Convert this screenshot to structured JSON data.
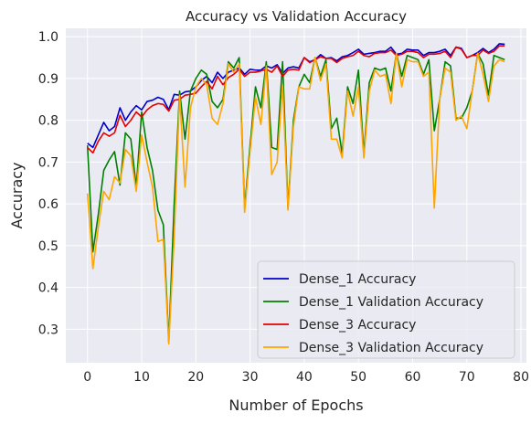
{
  "chart_data": {
    "type": "line",
    "title": "Accuracy vs Validation Accuracy",
    "xlabel": "Number of Epochs",
    "ylabel": "Accuracy",
    "xlim": [
      -4,
      81
    ],
    "ylim": [
      0.22,
      1.02
    ],
    "xticks": [
      0,
      10,
      20,
      30,
      40,
      50,
      60,
      70,
      80
    ],
    "yticks": [
      0.3,
      0.4,
      0.5,
      0.6,
      0.7,
      0.8,
      0.9,
      1.0
    ],
    "xtick_labels": [
      "0",
      "10",
      "20",
      "30",
      "40",
      "50",
      "60",
      "70",
      "80"
    ],
    "ytick_labels": [
      "0.3",
      "0.4",
      "0.5",
      "0.6",
      "0.7",
      "0.8",
      "0.9",
      "1.0"
    ],
    "grid": true,
    "legend_position": "lower-right",
    "x": [
      0,
      1,
      2,
      3,
      4,
      5,
      6,
      7,
      8,
      9,
      10,
      11,
      12,
      13,
      14,
      15,
      16,
      17,
      18,
      19,
      20,
      21,
      22,
      23,
      24,
      25,
      26,
      27,
      28,
      29,
      30,
      31,
      32,
      33,
      34,
      35,
      36,
      37,
      38,
      39,
      40,
      41,
      42,
      43,
      44,
      45,
      46,
      47,
      48,
      49,
      50,
      51,
      52,
      53,
      54,
      55,
      56,
      57,
      58,
      59,
      60,
      61,
      62,
      63,
      64,
      65,
      66,
      67,
      68,
      69,
      70,
      71,
      72,
      73,
      74,
      75,
      76,
      77
    ],
    "series": [
      {
        "name": "Dense_1 Accuracy",
        "color": "#0000cc",
        "values": [
          0.745,
          0.735,
          0.765,
          0.795,
          0.775,
          0.785,
          0.83,
          0.8,
          0.82,
          0.835,
          0.825,
          0.845,
          0.848,
          0.855,
          0.85,
          0.825,
          0.862,
          0.86,
          0.868,
          0.87,
          0.88,
          0.895,
          0.905,
          0.89,
          0.915,
          0.9,
          0.915,
          0.92,
          0.925,
          0.91,
          0.922,
          0.92,
          0.92,
          0.93,
          0.925,
          0.933,
          0.912,
          0.925,
          0.928,
          0.925,
          0.95,
          0.94,
          0.945,
          0.957,
          0.948,
          0.95,
          0.942,
          0.952,
          0.955,
          0.962,
          0.97,
          0.958,
          0.96,
          0.962,
          0.965,
          0.965,
          0.975,
          0.958,
          0.96,
          0.97,
          0.968,
          0.968,
          0.955,
          0.962,
          0.962,
          0.965,
          0.97,
          0.955,
          0.975,
          0.972,
          0.95,
          0.955,
          0.962,
          0.972,
          0.962,
          0.97,
          0.983,
          0.982
        ]
      },
      {
        "name": "Dense_1 Validation Accuracy",
        "color": "#008000",
        "values": [
          0.74,
          0.485,
          0.575,
          0.68,
          0.705,
          0.725,
          0.645,
          0.77,
          0.755,
          0.64,
          0.82,
          0.735,
          0.68,
          0.585,
          0.55,
          0.27,
          0.6,
          0.87,
          0.755,
          0.87,
          0.9,
          0.92,
          0.91,
          0.845,
          0.83,
          0.85,
          0.94,
          0.925,
          0.95,
          0.59,
          0.74,
          0.88,
          0.83,
          0.94,
          0.735,
          0.73,
          0.94,
          0.59,
          0.8,
          0.88,
          0.91,
          0.89,
          0.95,
          0.905,
          0.945,
          0.78,
          0.805,
          0.72,
          0.88,
          0.84,
          0.92,
          0.72,
          0.89,
          0.925,
          0.92,
          0.925,
          0.87,
          0.96,
          0.905,
          0.955,
          0.95,
          0.945,
          0.91,
          0.945,
          0.775,
          0.85,
          0.94,
          0.93,
          0.805,
          0.805,
          0.83,
          0.87,
          0.96,
          0.935,
          0.86,
          0.955,
          0.95,
          0.945
        ]
      },
      {
        "name": "Dense_3 Accuracy",
        "color": "#e60000",
        "values": [
          0.735,
          0.722,
          0.75,
          0.77,
          0.762,
          0.77,
          0.812,
          0.785,
          0.8,
          0.82,
          0.808,
          0.825,
          0.835,
          0.84,
          0.838,
          0.822,
          0.848,
          0.85,
          0.86,
          0.862,
          0.865,
          0.88,
          0.893,
          0.875,
          0.905,
          0.885,
          0.902,
          0.91,
          0.922,
          0.905,
          0.915,
          0.915,
          0.918,
          0.922,
          0.915,
          0.93,
          0.905,
          0.92,
          0.922,
          0.92,
          0.95,
          0.938,
          0.945,
          0.952,
          0.948,
          0.948,
          0.938,
          0.948,
          0.952,
          0.955,
          0.965,
          0.955,
          0.952,
          0.96,
          0.962,
          0.962,
          0.968,
          0.955,
          0.958,
          0.965,
          0.965,
          0.962,
          0.95,
          0.958,
          0.958,
          0.96,
          0.965,
          0.95,
          0.975,
          0.97,
          0.95,
          0.955,
          0.955,
          0.968,
          0.96,
          0.965,
          0.978,
          0.978
        ]
      },
      {
        "name": "Dense_3 Validation Accuracy",
        "color": "#ffa500",
        "values": [
          0.625,
          0.445,
          0.545,
          0.63,
          0.61,
          0.665,
          0.65,
          0.73,
          0.715,
          0.63,
          0.765,
          0.7,
          0.64,
          0.51,
          0.515,
          0.265,
          0.52,
          0.86,
          0.64,
          0.83,
          0.88,
          0.9,
          0.885,
          0.805,
          0.79,
          0.84,
          0.935,
          0.915,
          0.935,
          0.58,
          0.725,
          0.855,
          0.79,
          0.93,
          0.67,
          0.7,
          0.885,
          0.585,
          0.785,
          0.88,
          0.875,
          0.875,
          0.95,
          0.895,
          0.935,
          0.755,
          0.755,
          0.71,
          0.87,
          0.81,
          0.88,
          0.71,
          0.87,
          0.92,
          0.905,
          0.91,
          0.84,
          0.96,
          0.88,
          0.945,
          0.94,
          0.94,
          0.905,
          0.915,
          0.59,
          0.85,
          0.925,
          0.915,
          0.8,
          0.81,
          0.78,
          0.87,
          0.96,
          0.91,
          0.845,
          0.93,
          0.945,
          0.94
        ]
      }
    ]
  }
}
